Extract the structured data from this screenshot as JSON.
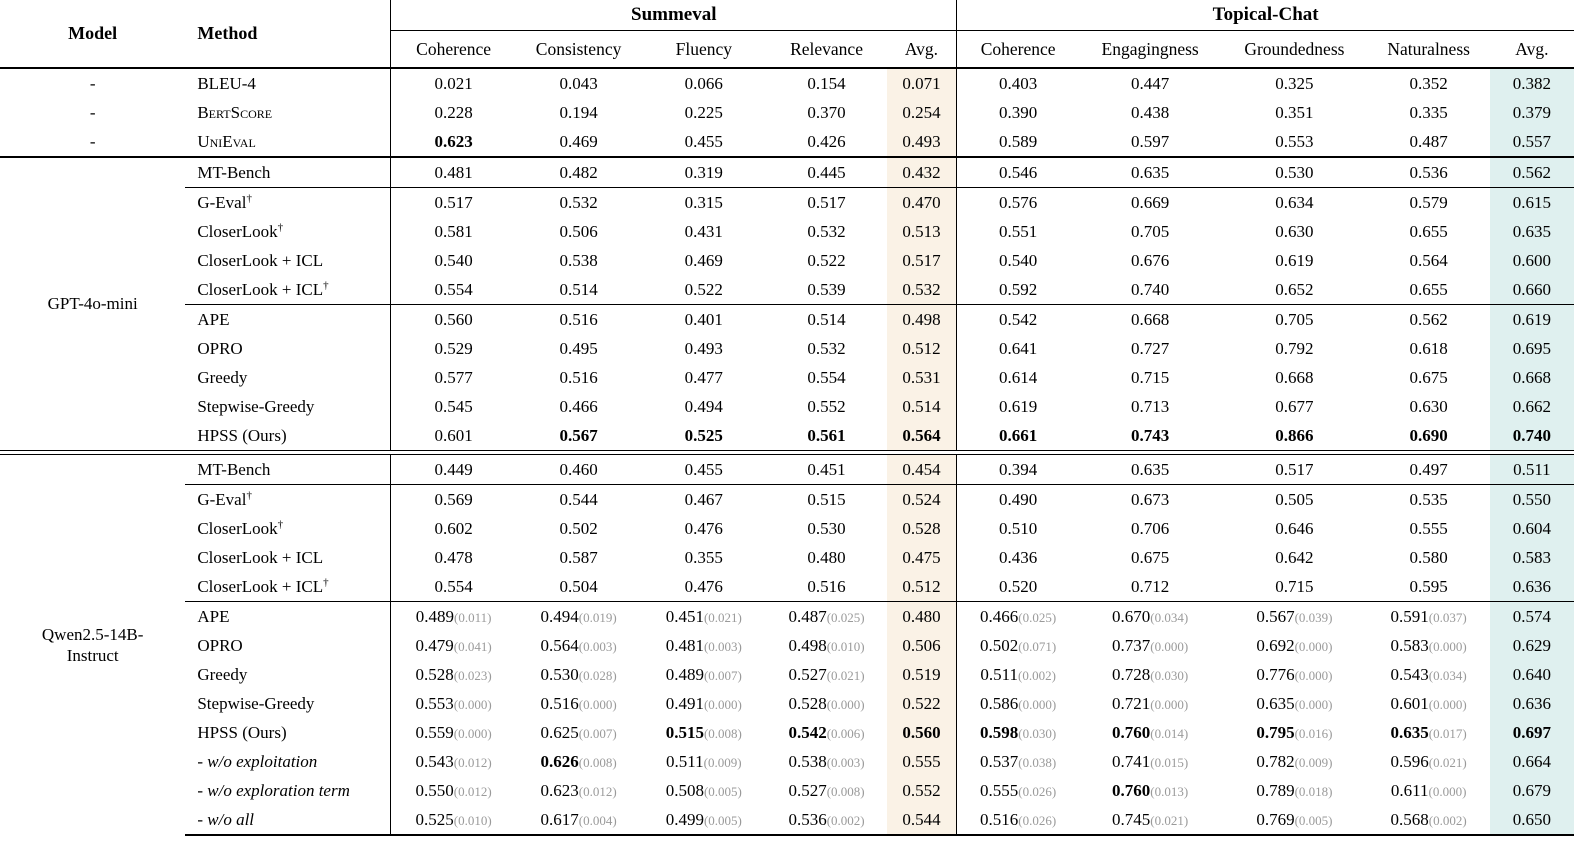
{
  "header": {
    "model": "Model",
    "method": "Method",
    "groups": [
      {
        "label": "Summeval",
        "cols": [
          "Coherence",
          "Consistency",
          "Fluency",
          "Relevance",
          "Avg."
        ]
      },
      {
        "label": "Topical-Chat",
        "cols": [
          "Coherence",
          "Engagingness",
          "Groundedness",
          "Naturalness",
          "Avg."
        ]
      }
    ]
  },
  "symbols": {
    "dagger": "†"
  },
  "colors": {
    "summeval_avg_bg": "#faf2e6",
    "topical_avg_bg": "#dff0ef",
    "std_text": "#9a9a9a",
    "rule": "#000000"
  },
  "sections": [
    {
      "model": "-",
      "model_per_row": true,
      "blocks": [
        {
          "rows": [
            {
              "method": "BLEU-4",
              "cells": [
                "0.021",
                "0.043",
                "0.066",
                "0.154",
                "0.071",
                "0.403",
                "0.447",
                "0.325",
                "0.352",
                "0.382"
              ]
            },
            {
              "method": "BertScore",
              "smallcaps": true,
              "cells": [
                "0.228",
                "0.194",
                "0.225",
                "0.370",
                "0.254",
                "0.390",
                "0.438",
                "0.351",
                "0.335",
                "0.379"
              ]
            },
            {
              "method": "UniEval",
              "smallcaps": true,
              "cells": [
                "*0.623",
                "0.469",
                "0.455",
                "0.426",
                "0.493",
                "0.589",
                "0.597",
                "0.553",
                "0.487",
                "0.557"
              ]
            }
          ]
        }
      ]
    },
    {
      "model": "GPT-4o-mini",
      "model_per_row": false,
      "blocks": [
        {
          "rows": [
            {
              "method": "MT-Bench",
              "cells": [
                "0.481",
                "0.482",
                "0.319",
                "0.445",
                "0.432",
                "0.546",
                "0.635",
                "0.530",
                "0.536",
                "0.562"
              ]
            }
          ]
        },
        {
          "rows": [
            {
              "method": "G-Eval",
              "dagger": true,
              "cells": [
                "0.517",
                "0.532",
                "0.315",
                "0.517",
                "0.470",
                "0.576",
                "0.669",
                "0.634",
                "0.579",
                "0.615"
              ]
            },
            {
              "method": "CloserLook",
              "dagger": true,
              "cells": [
                "0.581",
                "0.506",
                "0.431",
                "0.532",
                "0.513",
                "0.551",
                "0.705",
                "0.630",
                "0.655",
                "0.635"
              ]
            },
            {
              "method": "CloserLook + ICL",
              "cells": [
                "0.540",
                "0.538",
                "0.469",
                "0.522",
                "0.517",
                "0.540",
                "0.676",
                "0.619",
                "0.564",
                "0.600"
              ]
            },
            {
              "method": "CloserLook + ICL",
              "dagger": true,
              "cells": [
                "0.554",
                "0.514",
                "0.522",
                "0.539",
                "0.532",
                "0.592",
                "0.740",
                "0.652",
                "0.655",
                "0.660"
              ]
            }
          ]
        },
        {
          "rows": [
            {
              "method": "APE",
              "cells": [
                "0.560",
                "0.516",
                "0.401",
                "0.514",
                "0.498",
                "0.542",
                "0.668",
                "0.705",
                "0.562",
                "0.619"
              ]
            },
            {
              "method": "OPRO",
              "cells": [
                "0.529",
                "0.495",
                "0.493",
                "0.532",
                "0.512",
                "0.641",
                "0.727",
                "0.792",
                "0.618",
                "0.695"
              ]
            },
            {
              "method": "Greedy",
              "cells": [
                "0.577",
                "0.516",
                "0.477",
                "0.554",
                "0.531",
                "0.614",
                "0.715",
                "0.668",
                "0.675",
                "0.668"
              ]
            },
            {
              "method": "Stepwise-Greedy",
              "cells": [
                "0.545",
                "0.466",
                "0.494",
                "0.552",
                "0.514",
                "0.619",
                "0.713",
                "0.677",
                "0.630",
                "0.662"
              ]
            },
            {
              "method": "HPSS (Ours)",
              "cells": [
                "0.601",
                "*0.567",
                "*0.525",
                "*0.561",
                "*0.564",
                "*0.661",
                "*0.743",
                "*0.866",
                "*0.690",
                "*0.740"
              ]
            }
          ]
        }
      ]
    },
    {
      "model": "Qwen2.5-14B-Instruct",
      "model_per_row": false,
      "blocks": [
        {
          "rows": [
            {
              "method": "MT-Bench",
              "cells": [
                "0.449",
                "0.460",
                "0.455",
                "0.451",
                "0.454",
                "0.394",
                "0.635",
                "0.517",
                "0.497",
                "0.511"
              ]
            }
          ]
        },
        {
          "rows": [
            {
              "method": "G-Eval",
              "dagger": true,
              "cells": [
                "0.569",
                "0.544",
                "0.467",
                "0.515",
                "0.524",
                "0.490",
                "0.673",
                "0.505",
                "0.535",
                "0.550"
              ]
            },
            {
              "method": "CloserLook",
              "dagger": true,
              "cells": [
                "0.602",
                "0.502",
                "0.476",
                "0.530",
                "0.528",
                "0.510",
                "0.706",
                "0.646",
                "0.555",
                "0.604"
              ]
            },
            {
              "method": "CloserLook + ICL",
              "cells": [
                "0.478",
                "0.587",
                "0.355",
                "0.480",
                "0.475",
                "0.436",
                "0.675",
                "0.642",
                "0.580",
                "0.583"
              ]
            },
            {
              "method": "CloserLook + ICL",
              "dagger": true,
              "cells": [
                "0.554",
                "0.504",
                "0.476",
                "0.516",
                "0.512",
                "0.520",
                "0.712",
                "0.715",
                "0.595",
                "0.636"
              ]
            }
          ]
        },
        {
          "rows": [
            {
              "method": "APE",
              "cells": [
                "0.489(0.011)",
                "0.494(0.019)",
                "0.451(0.021)",
                "0.487(0.025)",
                "0.480",
                "0.466(0.025)",
                "0.670(0.034)",
                "0.567(0.039)",
                "0.591(0.037)",
                "0.574"
              ]
            },
            {
              "method": "OPRO",
              "cells": [
                "0.479(0.041)",
                "0.564(0.003)",
                "0.481(0.003)",
                "0.498(0.010)",
                "0.506",
                "0.502(0.071)",
                "0.737(0.000)",
                "0.692(0.000)",
                "0.583(0.000)",
                "0.629"
              ]
            },
            {
              "method": "Greedy",
              "cells": [
                "0.528(0.023)",
                "0.530(0.028)",
                "0.489(0.007)",
                "0.527(0.021)",
                "0.519",
                "0.511(0.002)",
                "0.728(0.030)",
                "0.776(0.000)",
                "0.543(0.034)",
                "0.640"
              ]
            },
            {
              "method": "Stepwise-Greedy",
              "cells": [
                "0.553(0.000)",
                "0.516(0.000)",
                "0.491(0.000)",
                "0.528(0.000)",
                "0.522",
                "0.586(0.000)",
                "0.721(0.000)",
                "0.635(0.000)",
                "0.601(0.000)",
                "0.636"
              ]
            },
            {
              "method": "HPSS (Ours)",
              "cells": [
                "0.559(0.000)",
                "0.625(0.007)",
                "*0.515(0.008)",
                "*0.542(0.006)",
                "*0.560",
                "*0.598(0.030)",
                "*0.760(0.014)",
                "*0.795(0.016)",
                "*0.635(0.017)",
                "*0.697"
              ]
            },
            {
              "method": "- w/o exploitation",
              "italic": true,
              "cells": [
                "0.543(0.012)",
                "*0.626(0.008)",
                "0.511(0.009)",
                "0.538(0.003)",
                "0.555",
                "0.537(0.038)",
                "0.741(0.015)",
                "0.782(0.009)",
                "0.596(0.021)",
                "0.664"
              ]
            },
            {
              "method": "- w/o exploration term",
              "italic": true,
              "cells": [
                "0.550(0.012)",
                "0.623(0.012)",
                "0.508(0.005)",
                "0.527(0.008)",
                "0.552",
                "0.555(0.026)",
                "*0.760(0.013)",
                "0.789(0.018)",
                "0.611(0.000)",
                "0.679"
              ]
            },
            {
              "method": "- w/o all",
              "italic": true,
              "cells": [
                "0.525(0.010)",
                "0.617(0.004)",
                "0.499(0.005)",
                "0.536(0.002)",
                "0.544",
                "0.516(0.026)",
                "0.745(0.021)",
                "0.769(0.005)",
                "0.568(0.002)",
                "0.650"
              ]
            }
          ]
        }
      ]
    }
  ]
}
